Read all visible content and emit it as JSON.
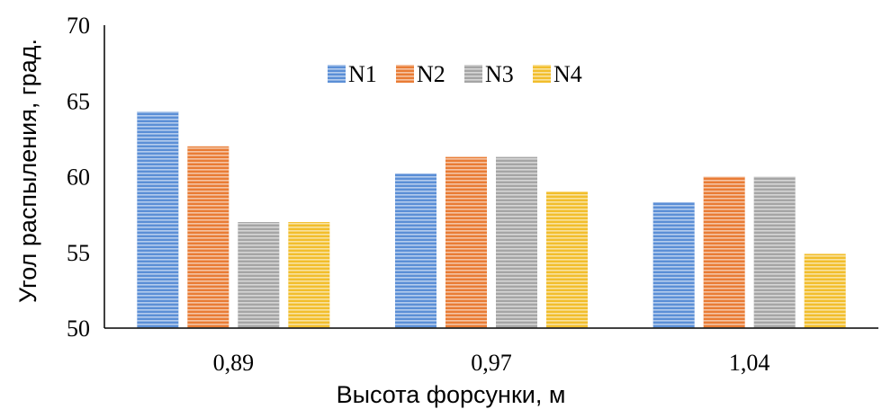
{
  "chart_data": {
    "type": "bar",
    "title": "",
    "xlabel": "Высота форсунки, м",
    "ylabel": "Угол распыления, град.",
    "categories": [
      "0,89",
      "0,97",
      "1,04"
    ],
    "ylim": [
      50,
      70
    ],
    "yticks": [
      50,
      55,
      60,
      65,
      70
    ],
    "grid": false,
    "legend_position": "top-center",
    "series": [
      {
        "name": "N1",
        "color": "#5B8FD6",
        "values": [
          64.3,
          60.2,
          58.3
        ]
      },
      {
        "name": "N2",
        "color": "#E97C35",
        "values": [
          62.0,
          61.3,
          60.0
        ]
      },
      {
        "name": "N3",
        "color": "#A5A5A5",
        "values": [
          57.0,
          61.3,
          60.0
        ]
      },
      {
        "name": "N4",
        "color": "#F2BE2C",
        "values": [
          57.0,
          59.0,
          54.9
        ]
      }
    ]
  }
}
